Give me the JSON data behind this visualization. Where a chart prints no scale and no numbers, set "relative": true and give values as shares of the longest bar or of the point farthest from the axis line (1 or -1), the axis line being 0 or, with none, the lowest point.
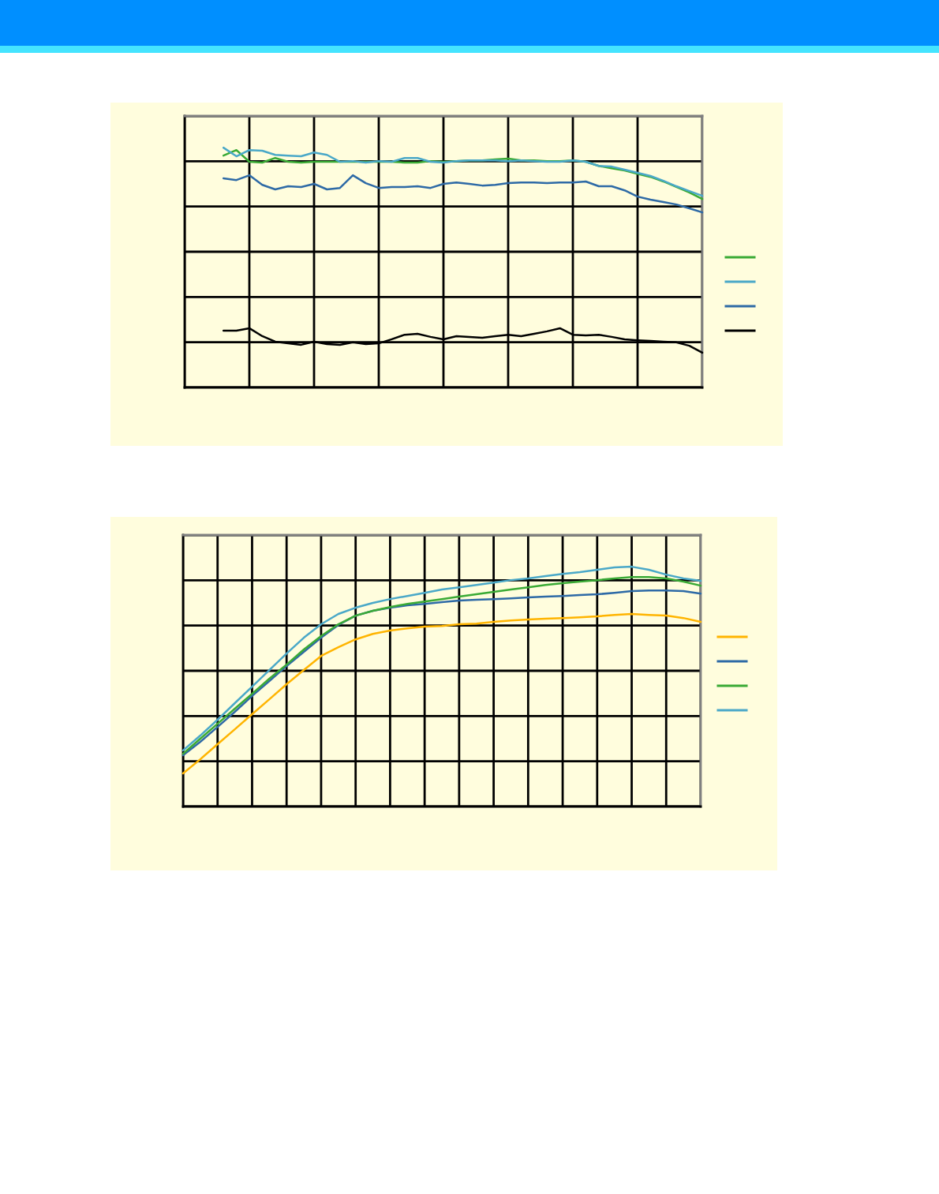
{
  "chart_data": [
    {
      "type": "line",
      "relative": true,
      "grid": true,
      "tick_labels": false,
      "line_style": "solid",
      "marker": "none",
      "categories": [
        null,
        null,
        null,
        null,
        null,
        null,
        null,
        null,
        null,
        null,
        null,
        null,
        null,
        null,
        null,
        null,
        null,
        null,
        null,
        null,
        null,
        null,
        null,
        null,
        null,
        null,
        null,
        null,
        null,
        null,
        null,
        null,
        null,
        null,
        null,
        null,
        null,
        null,
        null,
        null,
        null
      ],
      "series": [
        {
          "color": "#3aaa35",
          "values": [
            null,
            null,
            null,
            0.967,
            0.99,
            0.941,
            0.938,
            0.957,
            0.941,
            0.938,
            0.941,
            0.941,
            0.941,
            0.941,
            0.941,
            0.941,
            0.941,
            0.938,
            0.938,
            0.944,
            0.941,
            0.944,
            0.947,
            0.947,
            0.951,
            0.954,
            0.947,
            0.947,
            0.944,
            0.944,
            0.947,
            0.941,
            0.924,
            0.914,
            0.905,
            0.891,
            0.878,
            0.859,
            0.836,
            0.813,
            0.786
          ]
        },
        {
          "color": "#4aa8c8",
          "values": [
            null,
            null,
            null,
            1.0,
            0.964,
            0.99,
            0.987,
            0.97,
            0.967,
            0.964,
            0.98,
            0.97,
            0.941,
            0.944,
            0.938,
            0.944,
            0.941,
            0.957,
            0.957,
            0.941,
            0.938,
            0.944,
            0.947,
            0.947,
            0.947,
            0.944,
            0.947,
            0.944,
            0.941,
            0.941,
            0.947,
            0.941,
            0.924,
            0.921,
            0.908,
            0.895,
            0.882,
            0.862,
            0.839,
            0.819,
            0.799
          ]
        },
        {
          "color": "#2e6aa6",
          "values": [
            null,
            null,
            null,
            0.872,
            0.865,
            0.885,
            0.845,
            0.826,
            0.839,
            0.836,
            0.849,
            0.826,
            0.832,
            0.885,
            0.852,
            0.832,
            0.836,
            0.836,
            0.839,
            0.832,
            0.849,
            0.855,
            0.849,
            0.842,
            0.845,
            0.852,
            0.855,
            0.855,
            0.852,
            0.855,
            0.855,
            0.859,
            0.839,
            0.839,
            0.822,
            0.796,
            0.783,
            0.773,
            0.763,
            0.747,
            0.73
          ]
        },
        {
          "color": "#000000",
          "values": [
            null,
            null,
            null,
            0.237,
            0.237,
            0.247,
            0.214,
            0.191,
            0.184,
            0.178,
            0.191,
            0.181,
            0.178,
            0.188,
            0.181,
            0.184,
            0.201,
            0.22,
            0.224,
            0.211,
            0.201,
            0.214,
            0.211,
            0.207,
            0.214,
            0.22,
            0.214,
            0.224,
            0.234,
            0.247,
            0.22,
            0.217,
            0.22,
            0.211,
            0.201,
            0.197,
            0.194,
            0.191,
            0.188,
            0.174,
            0.145
          ]
        }
      ]
    },
    {
      "type": "line",
      "relative": true,
      "grid": true,
      "tick_labels": false,
      "line_style": "solid",
      "marker": "none",
      "categories": [
        null,
        null,
        null,
        null,
        null,
        null,
        null,
        null,
        null,
        null,
        null,
        null,
        null,
        null,
        null,
        null,
        null,
        null,
        null,
        null,
        null,
        null,
        null,
        null,
        null,
        null,
        null,
        null,
        null,
        null,
        null
      ],
      "series": [
        {
          "color": "#ffb400",
          "values": [
            0.138,
            0.197,
            0.26,
            0.322,
            0.385,
            0.447,
            0.51,
            0.569,
            0.628,
            0.664,
            0.697,
            0.72,
            0.734,
            0.743,
            0.75,
            0.753,
            0.76,
            0.763,
            0.77,
            0.776,
            0.78,
            0.783,
            0.786,
            0.789,
            0.793,
            0.799,
            0.803,
            0.799,
            0.796,
            0.786,
            0.77
          ]
        },
        {
          "color": "#2e6aa6",
          "values": [
            0.214,
            0.27,
            0.332,
            0.395,
            0.461,
            0.523,
            0.586,
            0.645,
            0.704,
            0.757,
            0.796,
            0.816,
            0.829,
            0.839,
            0.845,
            0.852,
            0.859,
            0.862,
            0.865,
            0.868,
            0.872,
            0.875,
            0.878,
            0.882,
            0.885,
            0.891,
            0.898,
            0.901,
            0.901,
            0.898,
            0.888
          ]
        },
        {
          "color": "#3aaa35",
          "values": [
            0.22,
            0.283,
            0.345,
            0.408,
            0.47,
            0.533,
            0.592,
            0.655,
            0.711,
            0.76,
            0.796,
            0.816,
            0.832,
            0.845,
            0.855,
            0.865,
            0.875,
            0.885,
            0.895,
            0.905,
            0.914,
            0.924,
            0.931,
            0.938,
            0.944,
            0.951,
            0.957,
            0.957,
            0.951,
            0.938,
            0.921
          ]
        },
        {
          "color": "#4aa8c8",
          "values": [
            0.234,
            0.296,
            0.362,
            0.431,
            0.5,
            0.569,
            0.638,
            0.704,
            0.76,
            0.803,
            0.829,
            0.849,
            0.865,
            0.878,
            0.891,
            0.905,
            0.914,
            0.924,
            0.934,
            0.944,
            0.951,
            0.961,
            0.97,
            0.977,
            0.987,
            0.997,
            1.0,
            0.987,
            0.967,
            0.951,
            0.941
          ]
        }
      ]
    }
  ]
}
